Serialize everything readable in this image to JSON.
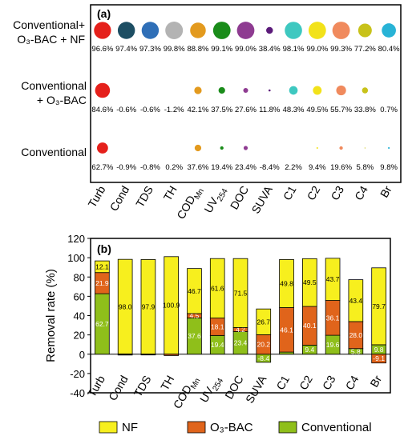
{
  "panel_a": {
    "label": "(a)",
    "rows": [
      {
        "name": "Conventional+\nO₃-BAC + NF",
        "values": [
          96.6,
          97.4,
          97.3,
          99.8,
          88.8,
          99.1,
          99.0,
          38.4,
          98.1,
          99.0,
          99.3,
          77.2,
          80.4
        ],
        "labels": [
          "96.6%",
          "97.4%",
          "97.3%",
          "99.8%",
          "88.8%",
          "99.1%",
          "99.0%",
          "38.4%",
          "98.1%",
          "99.0%",
          "99.3%",
          "77.2%",
          "80.4%"
        ]
      },
      {
        "name": "Conventional\n+ O₃-BAC",
        "values": [
          84.6,
          -0.6,
          -0.6,
          -1.2,
          42.1,
          37.5,
          27.6,
          11.8,
          48.3,
          49.5,
          55.7,
          33.8,
          0.7
        ],
        "labels": [
          "84.6%",
          "-0.6%",
          "-0.6%",
          "-1.2%",
          "42.1%",
          "37.5%",
          "27.6%",
          "11.8%",
          "48.3%",
          "49.5%",
          "55.7%",
          "33.8%",
          "0.7%"
        ]
      },
      {
        "name": "Conventional",
        "values": [
          62.7,
          -0.9,
          -0.8,
          0.2,
          37.6,
          19.4,
          23.4,
          -8.4,
          2.2,
          9.4,
          19.6,
          5.8,
          9.8
        ],
        "labels": [
          "62.7%",
          "-0.9%",
          "-0.8%",
          "0.2%",
          "37.6%",
          "19.4%",
          "23.4%",
          "-8.4%",
          "2.2%",
          "9.4%",
          "19.6%",
          "5.8%",
          "9.8%"
        ]
      }
    ],
    "colors": [
      "#e5201b",
      "#1d4e63",
      "#2f6fb7",
      "#b3b3b3",
      "#e39a1e",
      "#1a8c1a",
      "#8e3b91",
      "#5b1a7a",
      "#3ec8c0",
      "#f2e21a",
      "#f08a5d",
      "#c8c21a",
      "#28b3d6"
    ]
  },
  "chart_data": {
    "type": "bar",
    "panel_label": "(b)",
    "categories": [
      "Turb",
      "Cond",
      "TDS",
      "TH",
      "COD_Mn",
      "UV_254",
      "DOC",
      "SUVA",
      "C1",
      "C2",
      "C3",
      "C4",
      "Br"
    ],
    "category_display": [
      {
        "main": "Turb",
        "sub": ""
      },
      {
        "main": "Cond",
        "sub": ""
      },
      {
        "main": "TDS",
        "sub": ""
      },
      {
        "main": "TH",
        "sub": ""
      },
      {
        "main": "COD",
        "sub": "Mn"
      },
      {
        "main": "UV",
        "sub": "254"
      },
      {
        "main": "DOC",
        "sub": ""
      },
      {
        "main": "SUVA",
        "sub": ""
      },
      {
        "main": "C1",
        "sub": ""
      },
      {
        "main": "C2",
        "sub": ""
      },
      {
        "main": "C3",
        "sub": ""
      },
      {
        "main": "C4",
        "sub": ""
      },
      {
        "main": "Br",
        "sub": ""
      }
    ],
    "series": [
      {
        "name": "Conventional",
        "color": "#8fbf1a",
        "values": [
          62.7,
          -0.9,
          -0.8,
          0.2,
          37.6,
          19.4,
          23.4,
          -8.4,
          2.2,
          9.4,
          19.6,
          5.8,
          9.8
        ],
        "labels": [
          "62.7",
          "",
          "",
          "",
          "37.6",
          "19.4",
          "23.4",
          "-8.4",
          "",
          "9.4",
          "19.6",
          "5.8",
          "9.8"
        ]
      },
      {
        "name": "O₃-BAC",
        "color": "#e0641b",
        "values": [
          21.9,
          0.3,
          0.2,
          -1.4,
          4.5,
          18.1,
          4.2,
          20.2,
          46.1,
          40.1,
          36.1,
          28.0,
          -9.1
        ],
        "labels": [
          "21.9",
          "",
          "",
          "",
          "4.5",
          "18.1",
          "4.2",
          "20.2",
          "46.1",
          "40.1",
          "36.1",
          "28.0",
          "-9.1"
        ]
      },
      {
        "name": "NF",
        "color": "#f7ef1e",
        "values": [
          12.1,
          98.0,
          97.9,
          100.9,
          46.7,
          61.6,
          71.5,
          26.7,
          49.8,
          49.5,
          43.7,
          43.4,
          79.7
        ],
        "labels": [
          "12.1",
          "98.0",
          "97.9",
          "100.9",
          "46.7",
          "61.6",
          "71.5",
          "26.7",
          "49.8",
          "49.5",
          "43.7",
          "43.4",
          "79.7"
        ]
      }
    ],
    "ylabel": "Removal rate (%)",
    "ylim": [
      -40,
      120
    ],
    "yticks": [
      -40,
      -20,
      0,
      20,
      40,
      60,
      80,
      100,
      120
    ],
    "legend": [
      "NF",
      "O₃-BAC",
      "Conventional"
    ],
    "legend_placement": "bottom"
  }
}
